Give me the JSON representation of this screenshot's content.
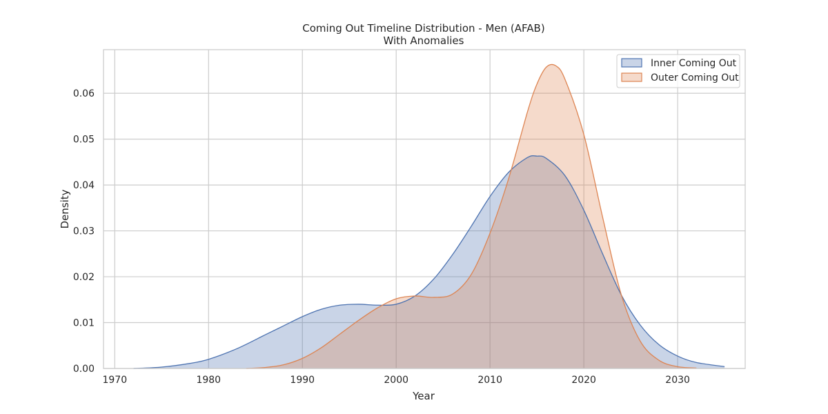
{
  "chart_data": {
    "type": "area",
    "title": "Coming Out Timeline Distribution - Men (AFAB)",
    "subtitle": "With Anomalies",
    "xlabel": "Year",
    "ylabel": "Density",
    "xlim": [
      1968.8,
      2037.2
    ],
    "ylim": [
      0,
      0.0695
    ],
    "xticks": [
      1970,
      1980,
      1990,
      2000,
      2010,
      2020,
      2030
    ],
    "yticks": [
      0.0,
      0.01,
      0.02,
      0.03,
      0.04,
      0.05,
      0.06
    ],
    "xtick_labels": [
      "1970",
      "1980",
      "1990",
      "2000",
      "2010",
      "2020",
      "2030"
    ],
    "ytick_labels": [
      "0.00",
      "0.01",
      "0.02",
      "0.03",
      "0.04",
      "0.05",
      "0.06"
    ],
    "grid": true,
    "legend_position": "top-right",
    "series": [
      {
        "name": "Inner Coming Out",
        "color": "#4c72b0",
        "x": [
          1972,
          1975,
          1978,
          1980,
          1983,
          1986,
          1988,
          1990,
          1992,
          1994,
          1996,
          1998,
          2000,
          2002,
          2004,
          2006,
          2008,
          2010,
          2012,
          2014,
          2015,
          2016,
          2018,
          2020,
          2022,
          2024,
          2026,
          2028,
          2030,
          2032,
          2035
        ],
        "values": [
          0.0,
          0.0003,
          0.0011,
          0.002,
          0.0043,
          0.0073,
          0.0093,
          0.0113,
          0.0129,
          0.0138,
          0.014,
          0.0138,
          0.014,
          0.0158,
          0.0195,
          0.0248,
          0.031,
          0.0375,
          0.0428,
          0.046,
          0.0463,
          0.0458,
          0.042,
          0.0345,
          0.025,
          0.016,
          0.0095,
          0.0052,
          0.0027,
          0.0013,
          0.0004
        ]
      },
      {
        "name": "Outer Coming Out",
        "color": "#dd8452",
        "x": [
          1984,
          1986,
          1988,
          1990,
          1992,
          1994,
          1996,
          1998,
          2000,
          2002,
          2004,
          2006,
          2008,
          2010,
          2012,
          2014,
          2015,
          2016,
          2017,
          2018,
          2020,
          2022,
          2024,
          2026,
          2028,
          2030,
          2032
        ],
        "values": [
          0.0,
          0.0002,
          0.0008,
          0.0022,
          0.0045,
          0.0075,
          0.0105,
          0.0132,
          0.0152,
          0.0158,
          0.0155,
          0.0162,
          0.0205,
          0.0295,
          0.0415,
          0.056,
          0.062,
          0.0657,
          0.066,
          0.063,
          0.051,
          0.033,
          0.016,
          0.006,
          0.0018,
          0.0004,
          0.0001
        ]
      }
    ]
  }
}
